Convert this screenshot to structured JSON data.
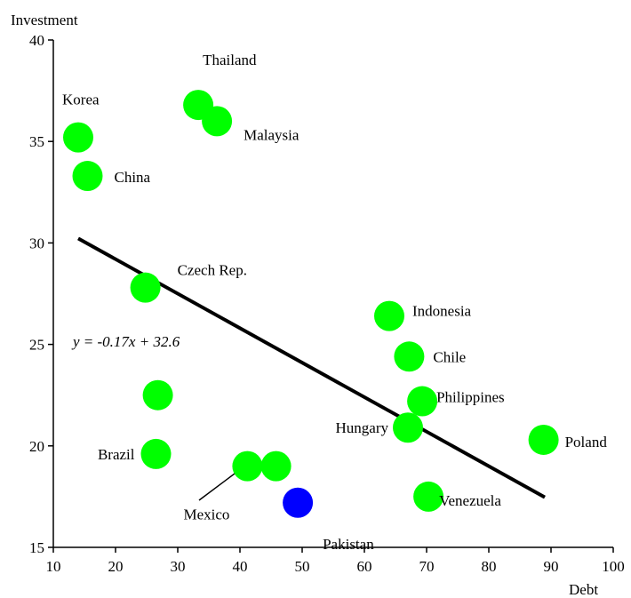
{
  "chart_data": {
    "type": "scatter",
    "xlabel": "Debt",
    "ylabel": "Investment",
    "xlim": [
      10,
      100
    ],
    "ylim": [
      15,
      40
    ],
    "xticks": [
      10,
      20,
      30,
      40,
      50,
      60,
      70,
      80,
      90,
      100
    ],
    "yticks": [
      15,
      20,
      25,
      30,
      35,
      40
    ],
    "grid": false,
    "points": [
      {
        "x": 14,
        "y": 35.2,
        "label": "Korea",
        "color": "#00ff00"
      },
      {
        "x": 15.5,
        "y": 33.3,
        "label": "China",
        "color": "#00ff00"
      },
      {
        "x": 33.3,
        "y": 36.8,
        "label": "Thailand",
        "color": "#00ff00"
      },
      {
        "x": 36.3,
        "y": 36.0,
        "label": "Malaysia",
        "color": "#00ff00"
      },
      {
        "x": 24.8,
        "y": 27.8,
        "label": "Czech Rep.",
        "color": "#00ff00"
      },
      {
        "x": 26.8,
        "y": 22.5,
        "label": "",
        "color": "#00ff00"
      },
      {
        "x": 26.5,
        "y": 19.6,
        "label": "Brazil",
        "color": "#00ff00"
      },
      {
        "x": 41.2,
        "y": 19.0,
        "label": "Mexico",
        "color": "#00ff00"
      },
      {
        "x": 45.8,
        "y": 19.0,
        "label": "",
        "color": "#00ff00"
      },
      {
        "x": 49.3,
        "y": 17.2,
        "label": "Pakistan",
        "color": "#0000ff"
      },
      {
        "x": 64.0,
        "y": 26.4,
        "label": "Indonesia",
        "color": "#00ff00"
      },
      {
        "x": 67.2,
        "y": 24.4,
        "label": "Chile",
        "color": "#00ff00"
      },
      {
        "x": 69.3,
        "y": 22.2,
        "label": "Philippines",
        "color": "#00ff00"
      },
      {
        "x": 67.0,
        "y": 20.9,
        "label": "Hungary",
        "color": "#00ff00"
      },
      {
        "x": 70.3,
        "y": 17.5,
        "label": "Venezuela",
        "color": "#00ff00"
      },
      {
        "x": 88.8,
        "y": 20.3,
        "label": "Poland",
        "color": "#00ff00"
      }
    ],
    "trendline": {
      "equation": "y = -0.17x + 32.6",
      "x_start": 14,
      "x_end": 89,
      "slope": -0.17,
      "intercept": 32.6,
      "color": "#000000"
    }
  }
}
